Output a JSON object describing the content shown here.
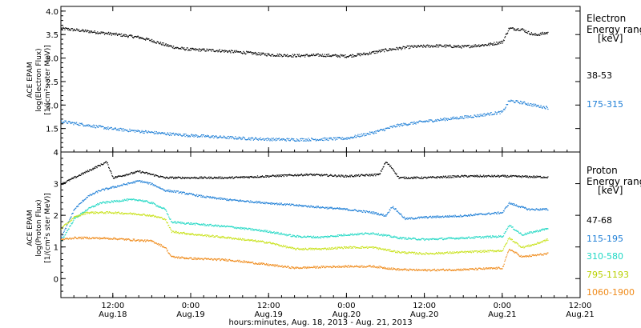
{
  "chart_data": {
    "type": "scatter",
    "xlabel": "hours:minutes, Aug. 18, 2013 - Aug. 21, 2013",
    "x_ticks": [
      {
        "time": "12:00",
        "date": "Aug.18",
        "hours": 12
      },
      {
        "time": "0:00",
        "date": "Aug.19",
        "hours": 24
      },
      {
        "time": "12:00",
        "date": "Aug.19",
        "hours": 36
      },
      {
        "time": "0:00",
        "date": "Aug.20",
        "hours": 48
      },
      {
        "time": "12:00",
        "date": "Aug.20",
        "hours": 60
      },
      {
        "time": "0:00",
        "date": "Aug.21",
        "hours": 72
      },
      {
        "time": "12:00",
        "date": "Aug.21",
        "hours": 84
      }
    ],
    "xlim_hours_from_aug18_0000": [
      4,
      84
    ],
    "data_end_hours": 79,
    "panels": [
      {
        "name": "electron",
        "ylabel": [
          "ACE EPAM",
          "log(Electron Flux)",
          "[1/(cm²s ster MeV)]"
        ],
        "ylim": [
          1.0,
          4.1
        ],
        "yticks": [
          "1.5",
          "2.0",
          "2.5",
          "3.0",
          "3.5",
          "4.0"
        ],
        "legend_title": [
          "Electron",
          "Energy range",
          "[keV]"
        ],
        "series": [
          {
            "name": "38-53",
            "color": "#000000",
            "points": [
              [
                4,
                3.64
              ],
              [
                8,
                3.58
              ],
              [
                12,
                3.52
              ],
              [
                16,
                3.45
              ],
              [
                18,
                3.38
              ],
              [
                20,
                3.29
              ],
              [
                22,
                3.22
              ],
              [
                24,
                3.19
              ],
              [
                28,
                3.17
              ],
              [
                32,
                3.13
              ],
              [
                36,
                3.08
              ],
              [
                40,
                3.06
              ],
              [
                44,
                3.07
              ],
              [
                48,
                3.05
              ],
              [
                51,
                3.1
              ],
              [
                54,
                3.18
              ],
              [
                58,
                3.25
              ],
              [
                62,
                3.27
              ],
              [
                66,
                3.25
              ],
              [
                70,
                3.3
              ],
              [
                72,
                3.35
              ],
              [
                73,
                3.64
              ],
              [
                75,
                3.62
              ],
              [
                76,
                3.55
              ],
              [
                77,
                3.5
              ],
              [
                79,
                3.55
              ]
            ]
          },
          {
            "name": "175-315",
            "color": "#1f7fd6",
            "points": [
              [
                4,
                1.66
              ],
              [
                8,
                1.58
              ],
              [
                12,
                1.5
              ],
              [
                16,
                1.45
              ],
              [
                20,
                1.4
              ],
              [
                24,
                1.36
              ],
              [
                28,
                1.33
              ],
              [
                32,
                1.3
              ],
              [
                36,
                1.28
              ],
              [
                40,
                1.27
              ],
              [
                44,
                1.28
              ],
              [
                48,
                1.3
              ],
              [
                52,
                1.42
              ],
              [
                56,
                1.58
              ],
              [
                60,
                1.66
              ],
              [
                64,
                1.72
              ],
              [
                68,
                1.78
              ],
              [
                72,
                1.86
              ],
              [
                73,
                2.1
              ],
              [
                75,
                2.06
              ],
              [
                77,
                2.0
              ],
              [
                79,
                1.95
              ]
            ]
          }
        ]
      },
      {
        "name": "proton",
        "ylabel": [
          "ACE EPAM",
          "log(Proton Flux)",
          "[1/(cm²s ster MeV)]"
        ],
        "ylim": [
          -0.6,
          4.0
        ],
        "yticks": [
          "0",
          "1",
          "2",
          "3",
          "4"
        ],
        "legend_title": [
          "Proton",
          "Energy range",
          "[keV]"
        ],
        "series": [
          {
            "name": "47-68",
            "color": "#000000",
            "points": [
              [
                4,
                3.0
              ],
              [
                6,
                3.2
              ],
              [
                8,
                3.4
              ],
              [
                10,
                3.6
              ],
              [
                11,
                3.7
              ],
              [
                12,
                3.2
              ],
              [
                14,
                3.3
              ],
              [
                16,
                3.4
              ],
              [
                18,
                3.3
              ],
              [
                20,
                3.2
              ],
              [
                24,
                3.2
              ],
              [
                30,
                3.2
              ],
              [
                36,
                3.25
              ],
              [
                42,
                3.3
              ],
              [
                48,
                3.25
              ],
              [
                53,
                3.3
              ],
              [
                54,
                3.7
              ],
              [
                55,
                3.5
              ],
              [
                56,
                3.2
              ],
              [
                60,
                3.2
              ],
              [
                66,
                3.25
              ],
              [
                72,
                3.25
              ],
              [
                79,
                3.22
              ]
            ]
          },
          {
            "name": "115-195",
            "color": "#1f7fd6",
            "points": [
              [
                4,
                1.3
              ],
              [
                6,
                2.2
              ],
              [
                8,
                2.6
              ],
              [
                10,
                2.8
              ],
              [
                12,
                2.9
              ],
              [
                14,
                3.0
              ],
              [
                16,
                3.1
              ],
              [
                18,
                3.0
              ],
              [
                20,
                2.8
              ],
              [
                22,
                2.75
              ],
              [
                26,
                2.6
              ],
              [
                30,
                2.5
              ],
              [
                36,
                2.4
              ],
              [
                42,
                2.3
              ],
              [
                48,
                2.2
              ],
              [
                52,
                2.1
              ],
              [
                54,
                2.0
              ],
              [
                55,
                2.3
              ],
              [
                57,
                1.9
              ],
              [
                60,
                1.95
              ],
              [
                66,
                2.0
              ],
              [
                72,
                2.1
              ],
              [
                73,
                2.4
              ],
              [
                76,
                2.2
              ],
              [
                79,
                2.2
              ]
            ]
          },
          {
            "name": "310-580",
            "color": "#20d8c4",
            "points": [
              [
                4,
                1.2
              ],
              [
                6,
                1.9
              ],
              [
                8,
                2.2
              ],
              [
                10,
                2.4
              ],
              [
                12,
                2.45
              ],
              [
                14,
                2.5
              ],
              [
                16,
                2.5
              ],
              [
                18,
                2.4
              ],
              [
                20,
                2.2
              ],
              [
                21,
                1.8
              ],
              [
                24,
                1.75
              ],
              [
                30,
                1.65
              ],
              [
                36,
                1.5
              ],
              [
                40,
                1.35
              ],
              [
                44,
                1.32
              ],
              [
                48,
                1.4
              ],
              [
                52,
                1.45
              ],
              [
                56,
                1.3
              ],
              [
                60,
                1.25
              ],
              [
                66,
                1.3
              ],
              [
                72,
                1.35
              ],
              [
                73,
                1.7
              ],
              [
                75,
                1.4
              ],
              [
                77,
                1.5
              ],
              [
                79,
                1.6
              ]
            ]
          },
          {
            "name": "795-1193",
            "color": "#c8e21a",
            "points": [
              [
                4,
                1.6
              ],
              [
                6,
                1.95
              ],
              [
                8,
                2.1
              ],
              [
                12,
                2.1
              ],
              [
                16,
                2.05
              ],
              [
                18,
                2.0
              ],
              [
                20,
                1.9
              ],
              [
                21,
                1.5
              ],
              [
                24,
                1.42
              ],
              [
                30,
                1.3
              ],
              [
                36,
                1.15
              ],
              [
                40,
                0.95
              ],
              [
                44,
                0.95
              ],
              [
                48,
                1.0
              ],
              [
                52,
                1.0
              ],
              [
                56,
                0.85
              ],
              [
                60,
                0.8
              ],
              [
                66,
                0.85
              ],
              [
                72,
                0.9
              ],
              [
                73,
                1.3
              ],
              [
                75,
                1.0
              ],
              [
                77,
                1.1
              ],
              [
                79,
                1.25
              ]
            ]
          },
          {
            "name": "1060-1900",
            "color": "#ef8a1a",
            "points": [
              [
                4,
                1.25
              ],
              [
                6,
                1.3
              ],
              [
                8,
                1.3
              ],
              [
                12,
                1.28
              ],
              [
                16,
                1.22
              ],
              [
                18,
                1.2
              ],
              [
                20,
                1.0
              ],
              [
                21,
                0.7
              ],
              [
                24,
                0.65
              ],
              [
                30,
                0.6
              ],
              [
                36,
                0.45
              ],
              [
                40,
                0.35
              ],
              [
                44,
                0.38
              ],
              [
                48,
                0.4
              ],
              [
                52,
                0.4
              ],
              [
                56,
                0.3
              ],
              [
                60,
                0.28
              ],
              [
                66,
                0.3
              ],
              [
                72,
                0.35
              ],
              [
                73,
                0.95
              ],
              [
                75,
                0.7
              ],
              [
                77,
                0.75
              ],
              [
                79,
                0.8
              ]
            ]
          }
        ]
      }
    ]
  }
}
